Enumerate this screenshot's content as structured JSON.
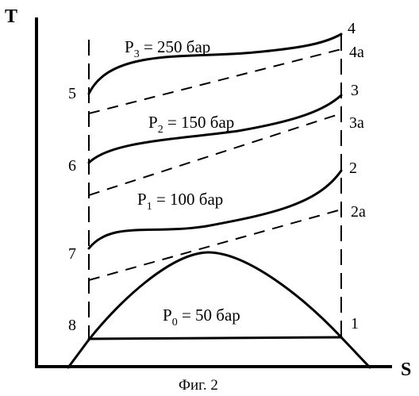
{
  "axes": {
    "y_label": "T",
    "x_label": "S"
  },
  "caption": "Фиг. 2",
  "isobars": [
    {
      "id": "p3",
      "letter": "P",
      "subscript": "3",
      "value_text": " = 250 бар"
    },
    {
      "id": "p2",
      "letter": "P",
      "subscript": "2",
      "value_text": " = 150 бар"
    },
    {
      "id": "p1",
      "letter": "P",
      "subscript": "1",
      "value_text": " = 100 бар"
    },
    {
      "id": "p0",
      "letter": "P",
      "subscript": "0",
      "value_text": " = 50 бар"
    }
  ],
  "points_left": [
    "5",
    "6",
    "7",
    "8"
  ],
  "points_right": [
    "4",
    "4a",
    "3",
    "3a",
    "2",
    "2a",
    "1"
  ]
}
